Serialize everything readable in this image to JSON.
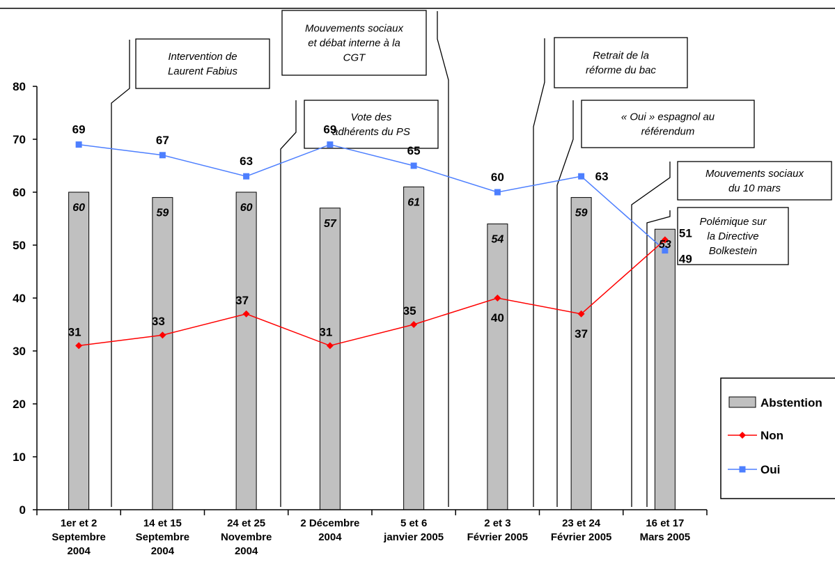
{
  "chart_data": {
    "type": "bar",
    "categories": [
      [
        "1er et 2",
        "Septembre",
        "2004"
      ],
      [
        "14 et 15",
        "Septembre",
        "2004"
      ],
      [
        "24 et 25",
        "Novembre",
        "2004"
      ],
      [
        "2 Décembre",
        "2004"
      ],
      [
        "5 et 6",
        "janvier 2005"
      ],
      [
        "2 et 3",
        "Février 2005"
      ],
      [
        "23 et 24",
        "Février 2005"
      ],
      [
        "16 et 17",
        "Mars 2005"
      ]
    ],
    "series": [
      {
        "name": "Abstention",
        "kind": "bar",
        "color": "#c0c0c0",
        "values": [
          60,
          59,
          60,
          57,
          61,
          54,
          59,
          53
        ]
      },
      {
        "name": "Non",
        "kind": "line",
        "color": "#ff0000",
        "marker": "diamond",
        "values": [
          31,
          33,
          37,
          31,
          35,
          40,
          37,
          51
        ]
      },
      {
        "name": "Oui",
        "kind": "line",
        "color": "#4d7fff",
        "marker": "square",
        "values": [
          69,
          67,
          63,
          69,
          65,
          60,
          63,
          49
        ]
      }
    ],
    "ylim": [
      0,
      80
    ],
    "yticks": [
      0,
      10,
      20,
      30,
      40,
      50,
      60,
      70,
      80
    ],
    "grid": false,
    "legend_position": "right",
    "annotations": [
      {
        "lines": [
          "Intervention de",
          "Laurent Fabius"
        ],
        "between": [
          0,
          1
        ]
      },
      {
        "lines": [
          "Mouvements sociaux",
          "et débat interne à la",
          "CGT"
        ],
        "between": [
          3,
          4
        ]
      },
      {
        "lines": [
          "Vote des",
          "adhérents du PS"
        ],
        "between": [
          2,
          3
        ]
      },
      {
        "lines": [
          "Retrait de la",
          "réforme du bac"
        ],
        "between": [
          5,
          6
        ]
      },
      {
        "lines": [
          "« Oui » espagnol au",
          "référendum"
        ],
        "between": [
          5,
          6
        ]
      },
      {
        "lines": [
          "Mouvements sociaux",
          "du 10 mars"
        ],
        "between": [
          6,
          7
        ]
      },
      {
        "lines": [
          "Polémique sur",
          "la Directive",
          "Bolkestein"
        ],
        "between": [
          6,
          7
        ]
      }
    ]
  }
}
